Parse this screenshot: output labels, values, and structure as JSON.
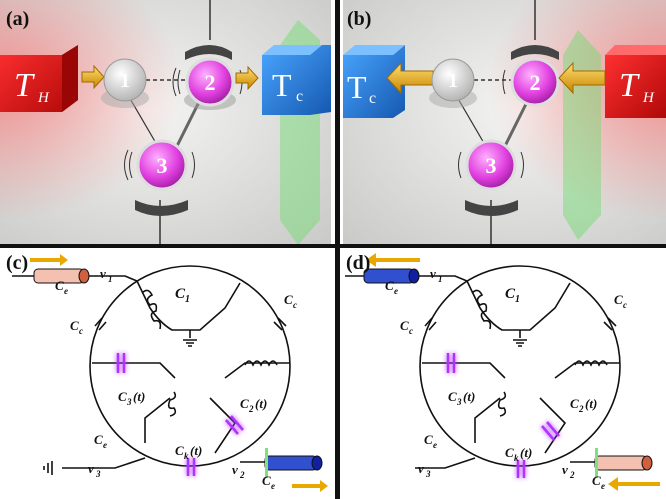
{
  "panels": {
    "a": {
      "label": "(a)",
      "hot": "T",
      "hot_sub": "H",
      "cold": "T",
      "cold_sub": "c",
      "q1": "1",
      "q2": "2",
      "q3": "3"
    },
    "b": {
      "label": "(b)",
      "hot": "T",
      "hot_sub": "H",
      "cold": "T",
      "cold_sub": "c",
      "q1": "1",
      "q2": "2",
      "q3": "3"
    },
    "c": {
      "label": "(c)"
    },
    "d": {
      "label": "(d)"
    }
  },
  "circuit": {
    "v1": "v",
    "v1_sub": "1",
    "v2": "v",
    "v2_sub": "2",
    "v3": "v",
    "v3_sub": "3",
    "c1": "C",
    "c1_sub": "1",
    "cc": "C",
    "cc_sub": "c",
    "ce": "C",
    "ce_sub": "e",
    "c2t": "C",
    "c2t_sub": "2",
    "c2t_tail": "(t)",
    "c3t": "C",
    "c3t_sub": "3",
    "c3t_tail": "(t)",
    "ckt": "C",
    "ckt_sub": "k",
    "ckt_tail": "(t)"
  },
  "colors": {
    "hot": "#e01818",
    "cold": "#1e78d8",
    "qubit_active": "#e040e0",
    "qubit_idle": "#d8d8d8",
    "arrow": "#e8a800",
    "capacitor_glow": "#cc44ff"
  }
}
